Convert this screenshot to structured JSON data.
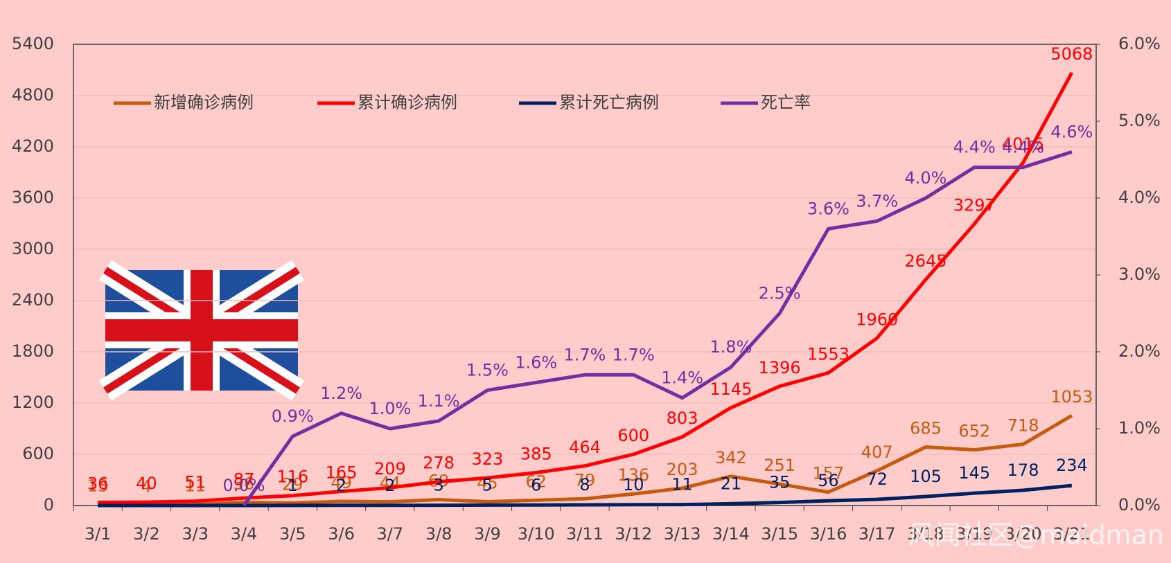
{
  "chart_data": {
    "type": "line",
    "categories": [
      "3/1",
      "3/2",
      "3/3",
      "3/4",
      "3/5",
      "3/6",
      "3/7",
      "3/8",
      "3/9",
      "3/10",
      "3/11",
      "3/12",
      "3/13",
      "3/14",
      "3/15",
      "3/16",
      "3/17",
      "3/18",
      "3/19",
      "3/20",
      "3/21"
    ],
    "series": [
      {
        "name": "新增确诊病例",
        "color": "#c55a11",
        "values": [
          13,
          4,
          11,
          36,
          29,
          49,
          44,
          69,
          45,
          62,
          79,
          136,
          203,
          342,
          251,
          157,
          407,
          685,
          652,
          718,
          1053
        ]
      },
      {
        "name": "累计确诊病例",
        "color": "#ff0000",
        "values": [
          36,
          40,
          51,
          87,
          116,
          165,
          209,
          278,
          323,
          385,
          464,
          600,
          803,
          1145,
          1396,
          1553,
          1960,
          2645,
          3297,
          4015,
          5068
        ]
      },
      {
        "name": "累计死亡病例",
        "color": "#002060",
        "values": [
          0,
          0,
          0,
          0,
          1,
          2,
          2,
          3,
          5,
          6,
          8,
          10,
          11,
          21,
          35,
          56,
          72,
          105,
          145,
          178,
          234
        ],
        "value_labels": [
          null,
          null,
          null,
          null,
          "1",
          "2",
          "2",
          "3",
          "5",
          "6",
          "8",
          "10",
          "11",
          "21",
          "35",
          "56",
          "72",
          "105",
          "145",
          "178",
          "234"
        ]
      },
      {
        "name": "死亡率",
        "color": "#7030a0",
        "axis": "y2",
        "values": [
          null,
          null,
          null,
          0.0,
          0.9,
          1.2,
          1.0,
          1.1,
          1.5,
          1.6,
          1.7,
          1.7,
          1.4,
          1.8,
          2.5,
          3.6,
          3.7,
          4.0,
          4.4,
          4.4,
          4.6
        ],
        "value_labels": [
          null,
          null,
          null,
          "0.0%",
          "0.9%",
          "1.2%",
          "1.0%",
          "1.1%",
          "1.5%",
          "1.6%",
          "1.7%",
          "1.7%",
          "1.4%",
          "1.8%",
          "2.5%",
          "3.6%",
          "3.7%",
          "4.0%",
          "4.4%",
          "4.4%",
          "4.6%"
        ]
      }
    ],
    "ylim": [
      0,
      5400
    ],
    "yticks": [
      0,
      600,
      1200,
      1800,
      2400,
      3000,
      3600,
      4200,
      4800,
      5400
    ],
    "y2lim": [
      0,
      6
    ],
    "y2ticks": [
      {
        "value": 0,
        "label": "0.0%"
      },
      {
        "value": 1,
        "label": "1.0%"
      },
      {
        "value": 2,
        "label": "2.0%"
      },
      {
        "value": 3,
        "label": "3.0%"
      },
      {
        "value": 4,
        "label": "4.0%"
      },
      {
        "value": 5,
        "label": "5.0%"
      },
      {
        "value": 6,
        "label": "6.0%"
      }
    ],
    "grid": true,
    "legend": "top-left",
    "watermark": "风闻社区@maldman"
  }
}
